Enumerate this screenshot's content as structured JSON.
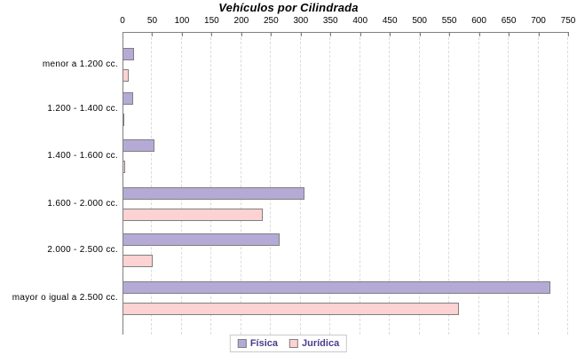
{
  "title": "Vehículos por Cilindrada",
  "legend": {
    "items": [
      {
        "label": "Física",
        "color": "#b5aad6"
      },
      {
        "label": "Jurídica",
        "color": "#fcd2d2"
      }
    ]
  },
  "chart_data": {
    "type": "bar",
    "orientation": "horizontal",
    "title": "Vehículos por Cilindrada",
    "categories": [
      "menor a 1.200 cc.",
      "1.200 - 1.400 cc.",
      "1.400 - 1.600 cc.",
      "1.600 - 2.000 cc.",
      "2.000 - 2.500 cc.",
      "mayor o igual a 2.500 cc."
    ],
    "series": [
      {
        "name": "Física",
        "color": "#b5aad6",
        "values": [
          20,
          18,
          54,
          307,
          264,
          720
        ]
      },
      {
        "name": "Jurídica",
        "color": "#fcd2d2",
        "values": [
          10,
          2,
          5,
          236,
          51,
          566
        ]
      }
    ],
    "xlim": [
      0,
      750
    ],
    "x_ticks": [
      0,
      50,
      100,
      150,
      200,
      250,
      300,
      350,
      400,
      450,
      500,
      550,
      600,
      650,
      700,
      750
    ],
    "grid": "vertical-dashed",
    "gridline_color": "#dbdbdb",
    "axis_color": "#808080",
    "bar_border_color": "#7f7f7f",
    "legend_position": "bottom-center"
  }
}
